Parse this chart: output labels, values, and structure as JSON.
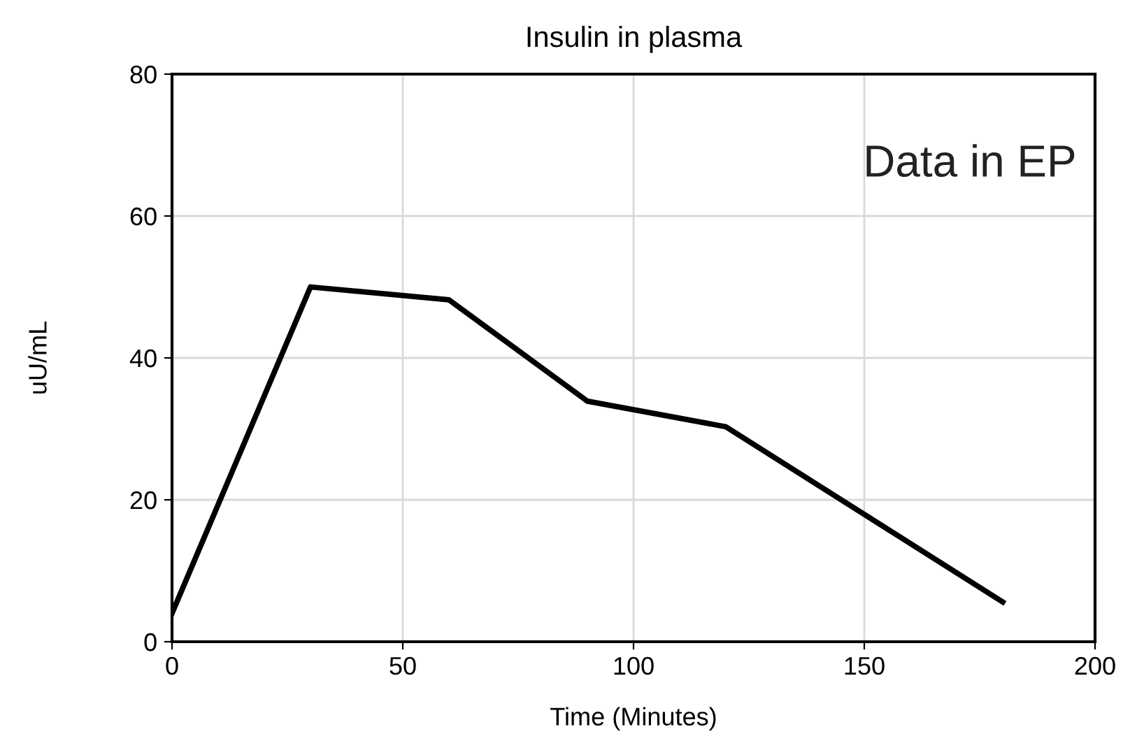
{
  "chart_data": {
    "type": "line",
    "title": "Insulin in plasma",
    "xlabel": "Time (Minutes)",
    "ylabel": "uU/mL",
    "x": [
      0,
      30,
      60,
      90,
      120,
      180
    ],
    "series": [
      {
        "color": "#000000",
        "values": [
          4,
          50,
          48.2,
          33.9,
          30.3,
          5.6
        ]
      }
    ],
    "xlim": [
      0,
      200
    ],
    "xticks": [
      0,
      50,
      100,
      150,
      200
    ],
    "ylim": [
      0,
      80
    ],
    "yticks": [
      0,
      20,
      40,
      60,
      80
    ],
    "grid": true,
    "marker": "none",
    "line_style": "solid",
    "annotations": [
      {
        "text": "Data in EP"
      }
    ]
  }
}
